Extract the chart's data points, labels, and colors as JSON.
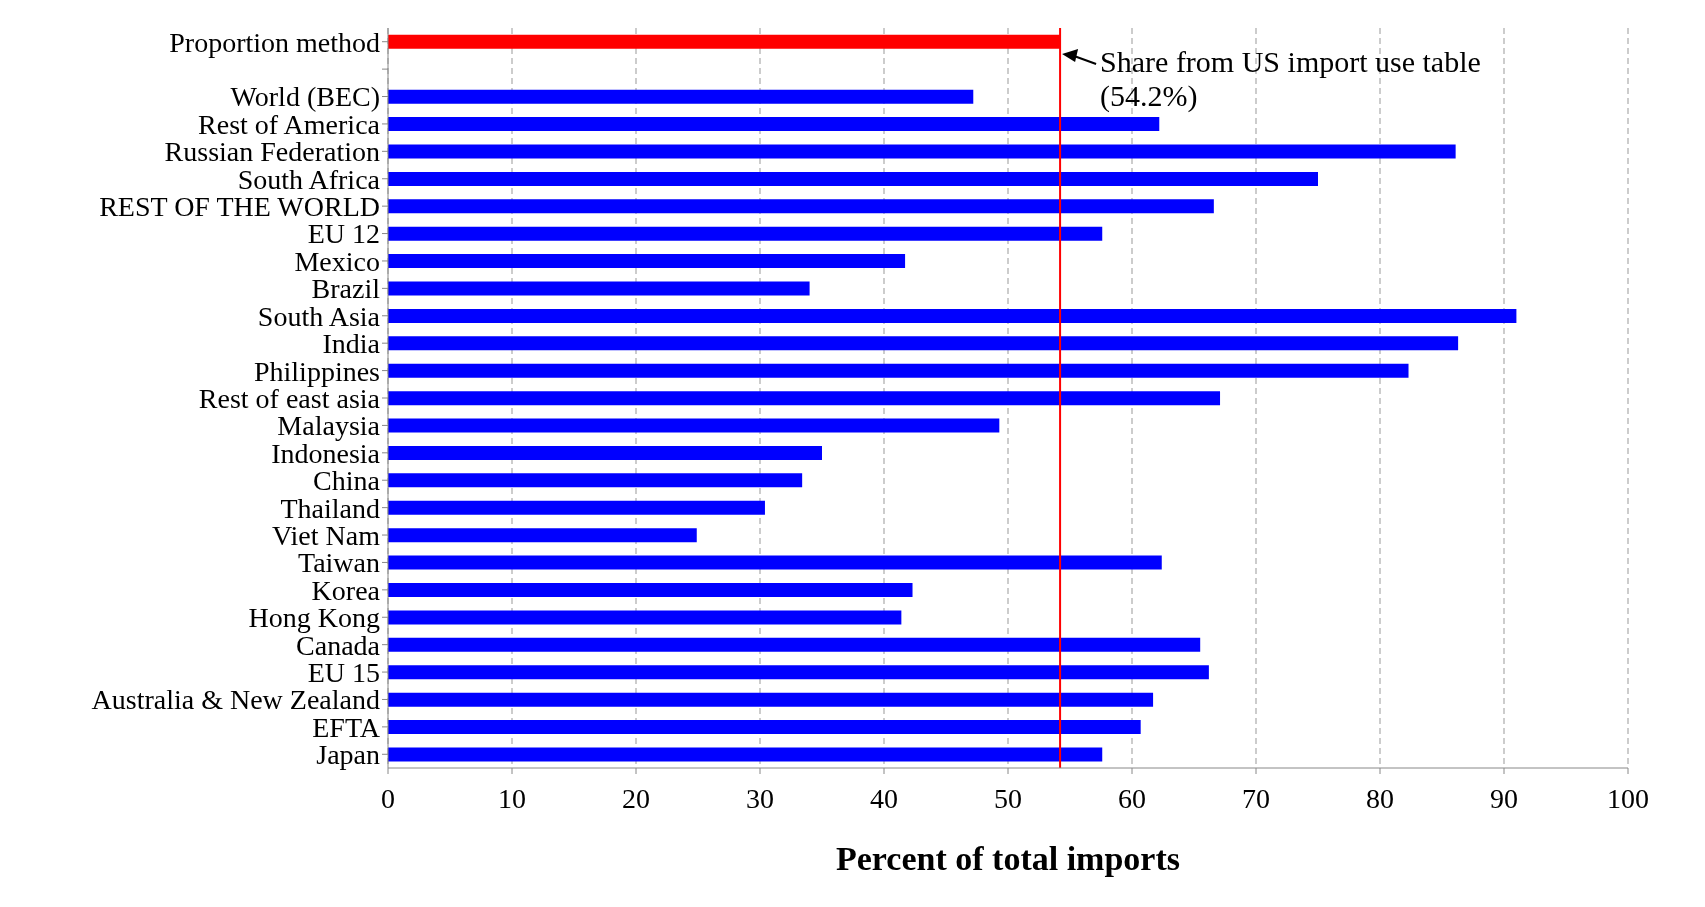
{
  "chart_data": {
    "type": "bar",
    "orientation": "horizontal",
    "xlabel": "Percent of total imports",
    "categories": [
      "Proportion method",
      null,
      "World (BEC)",
      "Rest of America",
      "Russian Federation",
      "South Africa",
      "REST OF THE WORLD",
      "EU 12",
      "Mexico",
      "Brazil",
      "South Asia",
      "India",
      "Philippines",
      "Rest of east asia",
      "Malaysia",
      "Indonesia",
      "China",
      "Thailand",
      "Viet Nam",
      "Taiwan",
      "Korea",
      "Hong Kong",
      "Canada",
      "EU 15",
      "Australia & New Zealand",
      "EFTA",
      "Japan"
    ],
    "values": [
      54.2,
      null,
      47.2,
      62.2,
      86.1,
      75.0,
      66.6,
      57.6,
      41.7,
      34.0,
      91.0,
      86.3,
      82.3,
      67.1,
      49.3,
      35.0,
      33.4,
      30.4,
      24.9,
      62.4,
      42.3,
      41.4,
      65.5,
      66.2,
      61.7,
      60.7,
      57.6
    ],
    "colors": [
      "#ff0000",
      null,
      "#0000ff",
      "#0000ff",
      "#0000ff",
      "#0000ff",
      "#0000ff",
      "#0000ff",
      "#0000ff",
      "#0000ff",
      "#0000ff",
      "#0000ff",
      "#0000ff",
      "#0000ff",
      "#0000ff",
      "#0000ff",
      "#0000ff",
      "#0000ff",
      "#0000ff",
      "#0000ff",
      "#0000ff",
      "#0000ff",
      "#0000ff",
      "#0000ff",
      "#0000ff",
      "#0000ff",
      "#0000ff"
    ],
    "xlim": [
      0,
      100
    ],
    "xticks": [
      0,
      10,
      20,
      30,
      40,
      50,
      60,
      70,
      80,
      90,
      100
    ],
    "grid": "x",
    "ref_lines": [
      {
        "axis": "x",
        "value": 54.2,
        "label": "Share from US import use table (54.2%)",
        "color": "#ff0000"
      }
    ]
  }
}
